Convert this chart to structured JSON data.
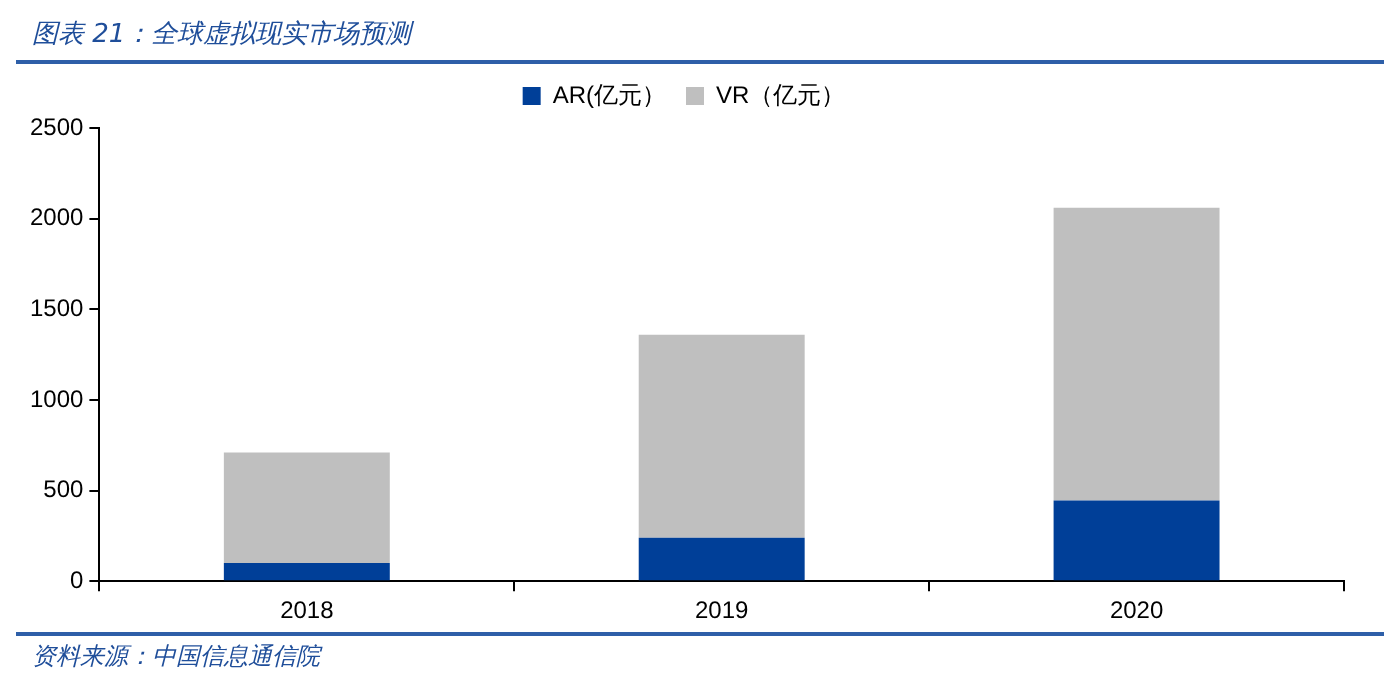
{
  "chart_data": {
    "type": "bar",
    "title": "图表 21：全球虚拟现实市场预测",
    "categories": [
      "2018",
      "2019",
      "2020"
    ],
    "stacked": true,
    "series": [
      {
        "name": "AR(亿元）",
        "color": "#003f98",
        "values": [
          100,
          240,
          445
        ]
      },
      {
        "name": "VR（亿元）",
        "color": "#bfbfbf",
        "values": [
          610,
          1120,
          1615
        ]
      }
    ],
    "ylim": [
      0,
      2500
    ],
    "yticks": [
      0,
      500,
      1000,
      1500,
      2000,
      2500
    ],
    "grid": false,
    "legend": "top",
    "annotations": [
      "资料来源：中国信息通信院"
    ]
  }
}
